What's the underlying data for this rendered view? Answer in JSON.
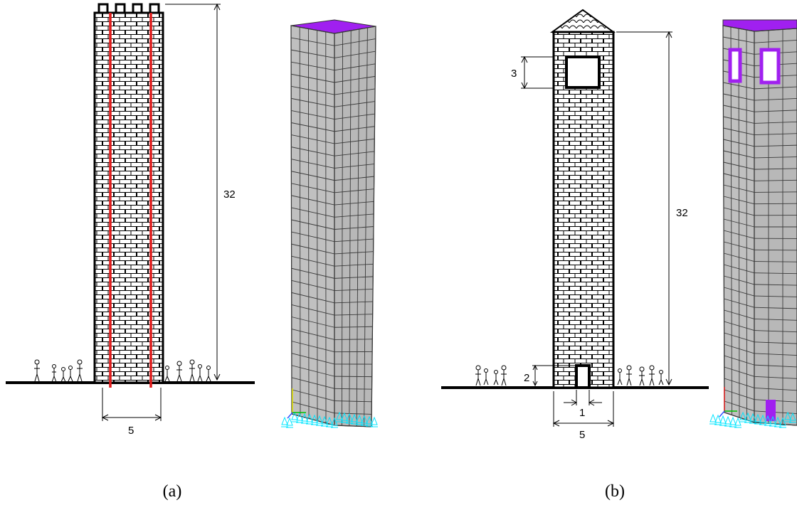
{
  "panels": [
    {
      "caption": "(a)",
      "dimensions": {
        "height": "32",
        "width": "5"
      },
      "mesh_cols": 9,
      "mesh_rows": 32
    },
    {
      "caption": "(b)",
      "dimensions": {
        "height": "32",
        "width": "5",
        "window": "3",
        "door_height": "2",
        "door_width": "1"
      },
      "mesh_cols": 7,
      "mesh_rows": 34
    }
  ],
  "colors": {
    "outline": "#000000",
    "red_line": "#e11b1b",
    "mesh_face": "#c0c0c0",
    "mesh_line": "#3a3a3a",
    "opening": "#a020f0",
    "supports": "#00e5ff"
  }
}
